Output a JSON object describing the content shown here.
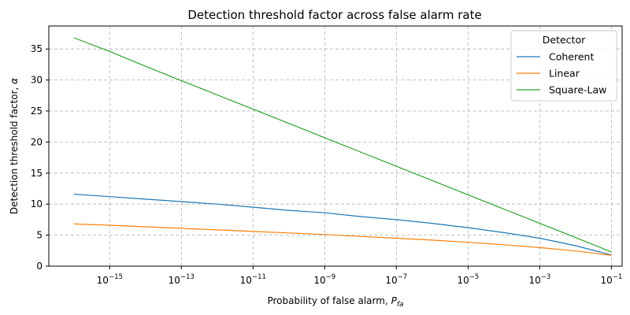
{
  "chart_data": {
    "type": "line",
    "title": "Detection threshold factor across false alarm rate",
    "xlabel": "Probability of false alarm, P_fa",
    "xlabel_main": "Probability of false alarm, ",
    "xlabel_symbol": "P",
    "xlabel_sub": "fa",
    "ylabel": "Detection threshold factor, α",
    "ylabel_main": "Detection threshold factor, ",
    "ylabel_symbol": "α",
    "x_scale": "log",
    "xlim_log10": [
      -16.7,
      -0.7
    ],
    "ylim": [
      0,
      38.7
    ],
    "x_ticks": [
      {
        "exp": -15,
        "base": "10",
        "sup": "−15"
      },
      {
        "exp": -13,
        "base": "10",
        "sup": "−13"
      },
      {
        "exp": -11,
        "base": "10",
        "sup": "−11"
      },
      {
        "exp": -9,
        "base": "10",
        "sup": "−9"
      },
      {
        "exp": -7,
        "base": "10",
        "sup": "−7"
      },
      {
        "exp": -5,
        "base": "10",
        "sup": "−5"
      },
      {
        "exp": -3,
        "base": "10",
        "sup": "−3"
      },
      {
        "exp": -1,
        "base": "10",
        "sup": "−1"
      }
    ],
    "y_ticks": [
      0,
      5,
      10,
      15,
      20,
      25,
      30,
      35
    ],
    "grid": true,
    "legend": {
      "title": "Detector",
      "placement": "top-right"
    },
    "x_log10": [
      -16,
      -15,
      -14,
      -13,
      -12,
      -11,
      -10,
      -9,
      -8,
      -7,
      -6,
      -5,
      -4,
      -3,
      -2,
      -1
    ],
    "series": [
      {
        "name": "Coherent",
        "color": "#1f77b4",
        "values": [
          11.6,
          11.2,
          10.8,
          10.4,
          10.0,
          9.5,
          9.0,
          8.6,
          8.0,
          7.5,
          6.9,
          6.2,
          5.4,
          4.5,
          3.3,
          1.8
        ]
      },
      {
        "name": "Linear",
        "color": "#ff7f0e",
        "values": [
          6.8,
          6.6,
          6.35,
          6.1,
          5.85,
          5.6,
          5.35,
          5.1,
          4.8,
          4.5,
          4.2,
          3.85,
          3.45,
          3.0,
          2.45,
          1.75
        ]
      },
      {
        "name": "Square-Law",
        "color": "#2ca02c",
        "values": [
          36.8,
          34.6,
          32.2,
          29.9,
          27.6,
          25.3,
          23.0,
          20.7,
          18.4,
          16.1,
          13.8,
          11.5,
          9.2,
          6.9,
          4.6,
          2.3
        ]
      }
    ]
  }
}
